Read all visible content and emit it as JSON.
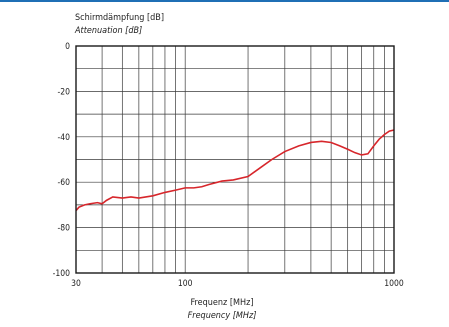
{
  "chart_data": {
    "type": "line",
    "ylabel": "Schirmdämpfung [dB]",
    "ylabel_en": "Attenuation [dB]",
    "xlabel": "Frequenz [MHz]",
    "xlabel_en": "Frequency [MHz]",
    "x_scale": "log",
    "xlim": [
      30,
      1000
    ],
    "ylim": [
      -100,
      0
    ],
    "x_ticks": [
      30,
      100,
      1000
    ],
    "x_tick_labels": [
      "30",
      "100",
      "1000"
    ],
    "y_ticks": [
      0,
      -20,
      -40,
      -60,
      -80,
      -100
    ],
    "y_tick_labels": [
      "0",
      "-20",
      "-40",
      "-60",
      "-80",
      "-100"
    ],
    "grid": true,
    "line_color": "#d7262b",
    "series": [
      {
        "x": [
          30,
          31,
          33,
          35,
          38,
          40,
          42,
          45,
          50,
          55,
          60,
          70,
          80,
          90,
          100,
          110,
          120,
          130,
          150,
          170,
          200,
          230,
          260,
          300,
          350,
          400,
          450,
          500,
          550,
          600,
          650,
          700,
          750,
          800,
          850,
          900,
          950,
          1000
        ],
        "y": [
          -72.5,
          -71,
          -70,
          -69.5,
          -69,
          -69.5,
          -68,
          -66.5,
          -67,
          -66.5,
          -67,
          -66,
          -64.5,
          -63.5,
          -62.5,
          -62.5,
          -62,
          -61,
          -59.5,
          -59,
          -57.5,
          -53.5,
          -50,
          -46.5,
          -44,
          -42.5,
          -42,
          -42.5,
          -44,
          -45.5,
          -47,
          -48,
          -47.5,
          -44,
          -41,
          -39,
          -37.5,
          -37
        ]
      }
    ]
  }
}
